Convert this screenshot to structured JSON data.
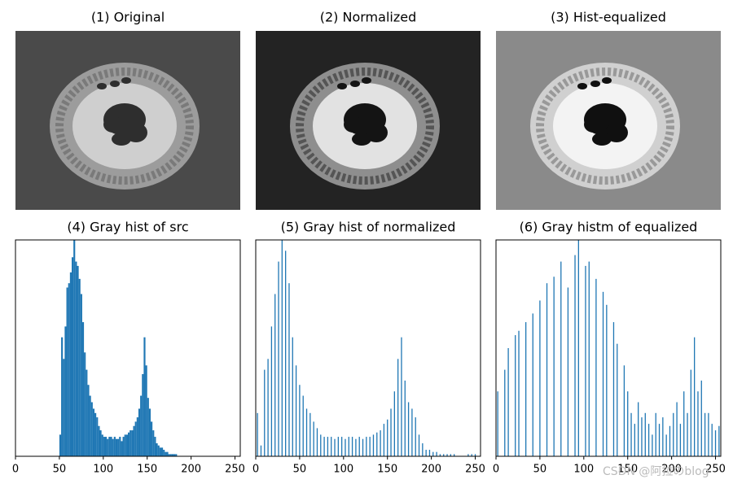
{
  "images": [
    {
      "title": "(1) Original"
    },
    {
      "title": "(2) Normalized"
    },
    {
      "title": "(3) Hist-equalized"
    }
  ],
  "watermark": "CSDN @阿拉のblog",
  "chart_data": [
    {
      "type": "histogram",
      "title": "(4) Gray hist of src",
      "color": "#1f77b4",
      "bins": [
        50,
        52,
        54,
        56,
        58,
        60,
        62,
        64,
        66,
        68,
        70,
        72,
        74,
        76,
        78,
        80,
        82,
        84,
        86,
        88,
        90,
        92,
        94,
        96,
        98,
        100,
        102,
        104,
        106,
        108,
        110,
        112,
        114,
        116,
        118,
        120,
        122,
        124,
        126,
        128,
        130,
        132,
        134,
        136,
        138,
        140,
        142,
        144,
        146,
        148,
        150,
        152,
        154,
        156,
        158,
        160,
        162,
        164,
        166,
        168,
        170,
        172,
        174,
        176,
        178,
        180,
        182,
        184,
        186,
        188,
        190,
        192
      ],
      "values": [
        10,
        55,
        45,
        60,
        78,
        80,
        85,
        92,
        100,
        90,
        88,
        82,
        75,
        62,
        48,
        40,
        33,
        28,
        25,
        22,
        20,
        18,
        14,
        12,
        10,
        9,
        9,
        8,
        9,
        9,
        8,
        9,
        8,
        8,
        9,
        7,
        9,
        10,
        10,
        11,
        12,
        12,
        14,
        16,
        18,
        22,
        28,
        38,
        55,
        42,
        27,
        22,
        16,
        12,
        9,
        6,
        5,
        4,
        4,
        3,
        2,
        2,
        1,
        1,
        1,
        1,
        1,
        0,
        0,
        0,
        0
      ],
      "xlim": [
        0,
        256
      ],
      "ylim": [
        0,
        100
      ],
      "xticks": [
        0,
        50,
        100,
        150,
        200,
        250
      ]
    },
    {
      "type": "histogram",
      "title": "(5) Gray hist of normalized",
      "color": "#1f77b4",
      "bins": [
        0,
        4,
        8,
        12,
        16,
        20,
        24,
        28,
        32,
        36,
        40,
        44,
        48,
        52,
        56,
        60,
        64,
        68,
        72,
        76,
        80,
        84,
        88,
        92,
        96,
        100,
        104,
        108,
        112,
        116,
        120,
        124,
        128,
        132,
        136,
        140,
        144,
        148,
        152,
        156,
        160,
        164,
        168,
        172,
        176,
        180,
        184,
        188,
        192,
        196,
        200,
        204,
        208,
        212,
        216,
        220,
        224,
        228,
        232,
        236,
        240,
        244,
        248,
        252,
        256
      ],
      "values": [
        20,
        5,
        40,
        45,
        60,
        75,
        90,
        100,
        95,
        80,
        55,
        42,
        33,
        28,
        22,
        20,
        16,
        13,
        10,
        9,
        9,
        9,
        8,
        9,
        9,
        8,
        9,
        9,
        8,
        9,
        8,
        9,
        9,
        10,
        11,
        12,
        15,
        17,
        22,
        30,
        45,
        55,
        35,
        25,
        22,
        18,
        10,
        6,
        3,
        3,
        2,
        2,
        1,
        1,
        1,
        1,
        1,
        0,
        0,
        0,
        1,
        1,
        1,
        0
      ],
      "xlim": [
        0,
        256
      ],
      "ylim": [
        0,
        100
      ],
      "xticks": [
        0,
        50,
        100,
        150,
        200,
        250
      ]
    },
    {
      "type": "histogram",
      "title": "(6) Gray histm of equalized",
      "color": "#1f77b4",
      "bins": [
        0,
        4,
        8,
        12,
        16,
        20,
        24,
        28,
        32,
        36,
        40,
        44,
        48,
        52,
        56,
        60,
        64,
        68,
        72,
        76,
        80,
        84,
        88,
        92,
        96,
        100,
        104,
        108,
        112,
        116,
        120,
        124,
        128,
        132,
        136,
        140,
        144,
        148,
        152,
        156,
        160,
        164,
        168,
        172,
        176,
        180,
        184,
        188,
        192,
        196,
        200,
        204,
        208,
        212,
        216,
        220,
        224,
        228,
        232,
        236,
        240,
        244,
        248,
        252,
        256
      ],
      "values": [
        30,
        0,
        40,
        50,
        0,
        56,
        58,
        0,
        62,
        0,
        66,
        0,
        72,
        0,
        80,
        0,
        83,
        0,
        90,
        0,
        78,
        0,
        93,
        100,
        0,
        88,
        90,
        0,
        82,
        0,
        76,
        70,
        0,
        62,
        52,
        0,
        42,
        30,
        20,
        15,
        25,
        18,
        20,
        15,
        10,
        20,
        15,
        18,
        10,
        14,
        20,
        25,
        15,
        30,
        20,
        40,
        55,
        30,
        35,
        20,
        20,
        15,
        12,
        14
      ],
      "xlim": [
        0,
        256
      ],
      "ylim": [
        0,
        100
      ],
      "xticks": [
        0,
        50,
        100,
        150,
        200,
        250
      ]
    }
  ]
}
